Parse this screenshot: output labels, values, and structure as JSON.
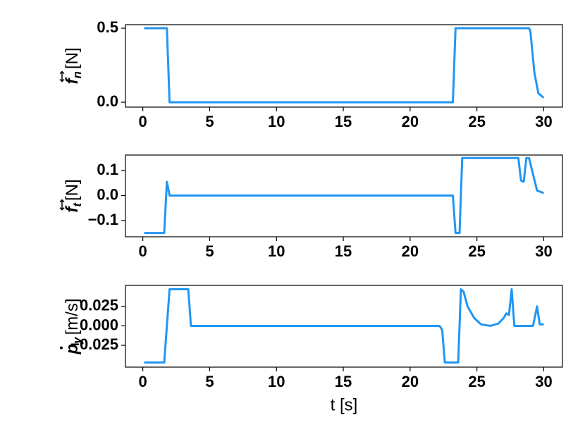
{
  "chart_data": [
    {
      "type": "line",
      "ylabel": {
        "symbol": "f",
        "subscript": "n",
        "unit": "[N]"
      },
      "x": [
        0.1,
        1.8,
        2.0,
        23.2,
        23.4,
        28.9,
        29.0,
        29.3,
        29.6,
        30.0
      ],
      "values": [
        0.5,
        0.5,
        0.0,
        0.0,
        0.5,
        0.5,
        0.48,
        0.2,
        0.06,
        0.03
      ],
      "color": "#2196f3",
      "xlim": [
        -1.3,
        31.4
      ],
      "xticks": [
        0,
        5,
        10,
        15,
        20,
        25,
        30
      ],
      "ylim": [
        -0.033,
        0.524
      ],
      "yticks": [
        {
          "value": 0,
          "label": "0.0"
        },
        0.5
      ]
    },
    {
      "type": "line",
      "ylabel": {
        "symbol": "f",
        "subscript": "t",
        "unit": "[N]"
      },
      "x": [
        0.1,
        1.6,
        1.8,
        2.0,
        23.2,
        23.4,
        23.7,
        23.9,
        28.1,
        28.3,
        28.5,
        28.7,
        28.9,
        29.5,
        30.0
      ],
      "values": [
        -0.15,
        -0.15,
        0.055,
        0.0,
        0.0,
        -0.15,
        -0.15,
        0.15,
        0.15,
        0.06,
        0.055,
        0.15,
        0.15,
        0.02,
        0.01
      ],
      "color": "#2196f3",
      "xlim": [
        -1.3,
        31.4
      ],
      "xticks": [
        0,
        5,
        10,
        15,
        20,
        25,
        30
      ],
      "ylim": [
        -0.165,
        0.162
      ],
      "yticks": [
        {
          "value": -0.1,
          "label": "−0.1"
        },
        {
          "value": 0,
          "label": "0.0"
        },
        0.1
      ]
    },
    {
      "type": "line",
      "ylabel": {
        "symbol": "p",
        "subscript": "y",
        "unit": "[m/s]"
      },
      "xlabel": "t [s]",
      "x": [
        0.1,
        1.6,
        2.0,
        3.4,
        3.6,
        22.2,
        22.4,
        22.6,
        23.6,
        23.8,
        24.0,
        24.3,
        24.8,
        25.3,
        26.0,
        26.6,
        27.0,
        27.2,
        27.4,
        27.6,
        27.8,
        29.2,
        29.5,
        29.7,
        30.0
      ],
      "values": [
        -0.047,
        -0.047,
        0.047,
        0.047,
        0.0,
        0.0,
        -0.005,
        -0.047,
        -0.047,
        0.047,
        0.044,
        0.025,
        0.01,
        0.002,
        0.0,
        0.003,
        0.01,
        0.016,
        0.014,
        0.047,
        0.0,
        0.0,
        0.025,
        0.002,
        0.002
      ],
      "color": "#2196f3",
      "xlim": [
        -1.3,
        31.4
      ],
      "xticks": [
        0,
        5,
        10,
        15,
        20,
        25,
        30
      ],
      "ylim": [
        -0.053,
        0.052
      ],
      "yticks": [
        {
          "value": -0.025,
          "label": "−0.025"
        },
        {
          "value": 0,
          "label": "0.000"
        },
        0.025
      ]
    }
  ]
}
